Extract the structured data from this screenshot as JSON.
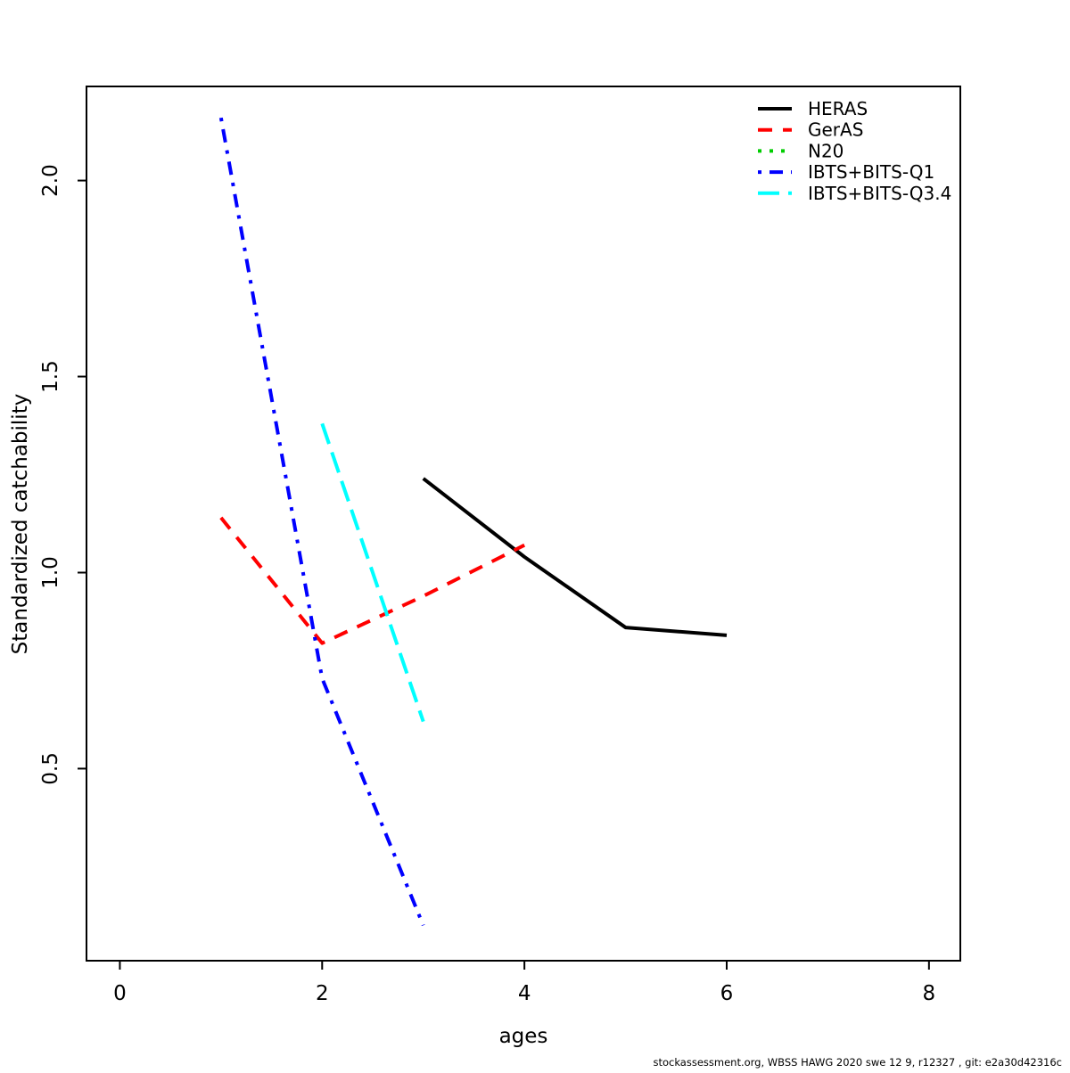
{
  "footer": "stockassessment.org, WBSS HAWG 2020 swe 12 9, r12327 , git: e2a30d42316c",
  "chart_data": {
    "type": "line",
    "title": "",
    "xlabel": "ages",
    "ylabel": "Standardized catchability",
    "xlim": [
      -0.33,
      8.31
    ],
    "ylim": [
      0.01,
      2.24
    ],
    "x_ticks": [
      0,
      2,
      4,
      6,
      8
    ],
    "x_tick_labels": [
      "0",
      "2",
      "4",
      "6",
      "8"
    ],
    "y_ticks": [
      0.5,
      1.0,
      1.5,
      2.0
    ],
    "y_tick_labels": [
      "0.5",
      "1.0",
      "1.5",
      "2.0"
    ],
    "grid": false,
    "legend_position": "top-right-inside",
    "series": [
      {
        "name": "HERAS",
        "color": "#000000",
        "linetype": "solid",
        "x": [
          3,
          4,
          5,
          6
        ],
        "values": [
          1.24,
          1.04,
          0.86,
          0.84
        ]
      },
      {
        "name": "GerAS",
        "color": "#FF0000",
        "linetype": "dashed",
        "x": [
          1,
          2,
          3,
          4
        ],
        "values": [
          1.14,
          0.82,
          0.94,
          1.07
        ]
      },
      {
        "name": "N20",
        "color": "#00CD00",
        "linetype": "dotted",
        "x": [],
        "values": []
      },
      {
        "name": "IBTS+BITS-Q1",
        "color": "#0000FF",
        "linetype": "dotdash",
        "x": [
          1,
          2,
          3
        ],
        "values": [
          2.16,
          0.73,
          0.1
        ]
      },
      {
        "name": "IBTS+BITS-Q3.4",
        "color": "#00FFFF",
        "linetype": "longdash",
        "x": [
          2,
          3
        ],
        "values": [
          1.38,
          0.62
        ]
      }
    ]
  }
}
